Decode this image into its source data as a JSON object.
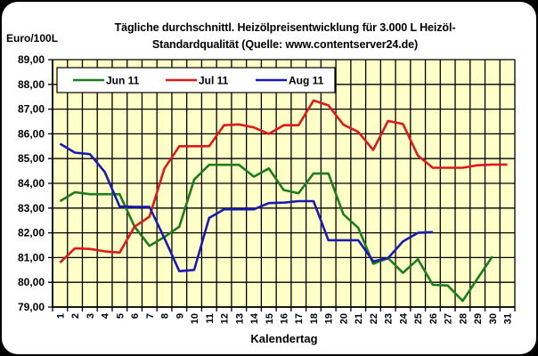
{
  "chart_data": {
    "type": "line",
    "title": "Tägliche durchschnittl. Heizölpreisentwicklung für 3.000 L Heizöl-Standardqualität (Quelle: www.contentserver24.de)",
    "title_lines": [
      "Tägliche durchschnittl. Heizölpreisentwicklung für 3.000 L Heizöl-",
      "Standardqualität (Quelle: www.contentserver24.de)"
    ],
    "xlabel": "Kalendertag",
    "ylabel": "Euro/100L",
    "ylim": [
      79,
      89
    ],
    "yticks": [
      "89,00",
      "88,00",
      "87,00",
      "86,00",
      "85,00",
      "84,00",
      "83,00",
      "82,00",
      "81,00",
      "80,00",
      "79,00"
    ],
    "grid": true,
    "legend_position": "top-left inside",
    "background": "#FFFFC8",
    "categories": [
      "1",
      "2",
      "3",
      "4",
      "5",
      "6",
      "7",
      "8",
      "9",
      "10",
      "11",
      "12",
      "13",
      "14",
      "15",
      "16",
      "17",
      "18",
      "19",
      "20",
      "21",
      "22",
      "23",
      "24",
      "25",
      "26",
      "27",
      "28",
      "29",
      "30",
      "31"
    ],
    "series": [
      {
        "name": "Jun 11",
        "color": "#1E7B1E",
        "values": [
          83.28,
          83.64,
          83.56,
          83.56,
          83.56,
          82.25,
          81.47,
          81.83,
          82.25,
          84.15,
          84.75,
          84.75,
          84.75,
          84.27,
          84.6,
          83.73,
          83.6,
          84.4,
          84.4,
          82.75,
          82.2,
          80.75,
          80.98,
          80.38,
          80.93,
          79.9,
          79.87,
          79.25,
          80.15,
          81.05,
          null
        ]
      },
      {
        "name": "Jul 11",
        "color": "#DD1A1A",
        "values": [
          80.8,
          81.37,
          81.35,
          81.25,
          81.2,
          82.25,
          82.65,
          84.6,
          85.5,
          85.5,
          85.5,
          86.35,
          86.38,
          86.26,
          86.0,
          86.35,
          86.35,
          87.35,
          87.15,
          86.37,
          86.08,
          85.35,
          86.52,
          86.4,
          85.12,
          84.63,
          84.63,
          84.63,
          84.73,
          84.76,
          84.76
        ]
      },
      {
        "name": "Aug 11",
        "color": "#1A1AB0",
        "values": [
          85.6,
          85.24,
          85.18,
          84.46,
          83.07,
          83.05,
          83.05,
          81.78,
          80.45,
          80.5,
          82.6,
          82.95,
          82.95,
          82.95,
          83.2,
          83.22,
          83.28,
          83.28,
          81.7,
          81.7,
          81.7,
          80.85,
          80.98,
          81.65,
          82.0,
          82.03,
          null,
          null,
          null,
          null,
          null
        ]
      }
    ]
  }
}
